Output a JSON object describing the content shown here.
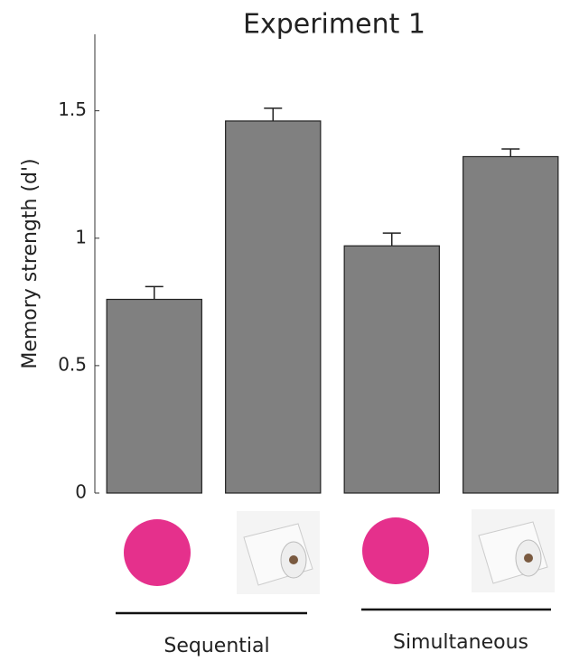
{
  "chart_data": {
    "type": "bar",
    "title": "Experiment 1",
    "y_label": "Memory strength (d')",
    "categories": [
      null,
      null,
      null,
      null
    ],
    "series": [
      {
        "color": "#808080",
        "values": [
          0.76,
          1.46,
          0.97,
          1.32
        ],
        "errors": [
          0.05,
          0.05,
          0.05,
          0.03
        ]
      }
    ],
    "group_labels": [
      "Sequential",
      "Simultaneous"
    ],
    "ylim": [
      0,
      1.8
    ],
    "yticks": [
      0,
      0.5,
      1,
      1.5
    ],
    "grid": false
  }
}
